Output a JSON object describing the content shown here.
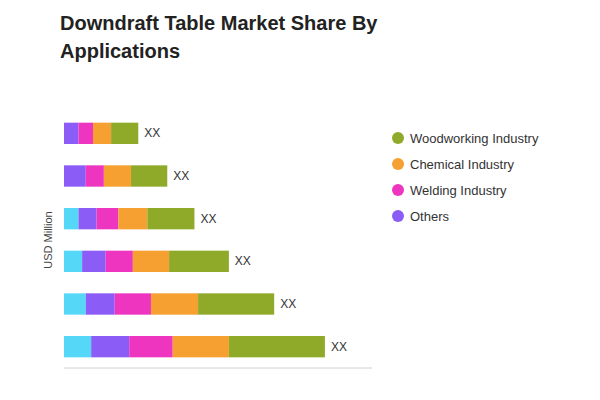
{
  "chart_data": {
    "type": "bar",
    "orientation": "horizontal",
    "stacked": true,
    "title": "Downdraft Table Market Share By",
    "subtitle": "Applications",
    "ylabel": "USD Million",
    "categories": [
      null,
      null,
      null,
      null,
      null,
      null
    ],
    "series": [
      {
        "color": "#55D8F8",
        "values": [
          1.5,
          1.2,
          1.0,
          0.8,
          0.0,
          0.0
        ]
      },
      {
        "name": "Others",
        "color": "#8B5CF6",
        "values": [
          2.1,
          1.6,
          1.3,
          1.0,
          1.2,
          0.8
        ]
      },
      {
        "name": "Welding Industry",
        "color": "#EE35C0",
        "values": [
          2.4,
          2.0,
          1.5,
          1.2,
          1.0,
          0.8
        ]
      },
      {
        "name": "Chemical Industry",
        "color": "#F5A030",
        "values": [
          3.1,
          2.6,
          2.0,
          1.6,
          1.5,
          1.0
        ]
      },
      {
        "name": "Woodworking Industry",
        "color": "#8FAA28",
        "values": [
          5.3,
          4.2,
          3.3,
          2.6,
          2.0,
          1.5
        ]
      }
    ],
    "xlim": [
      0,
      17
    ],
    "xticks": [],
    "tick_labels": false,
    "legend": "upper right",
    "annotations": [
      "XX",
      "XX",
      "XX",
      "XX",
      "XX",
      "XX"
    ]
  }
}
